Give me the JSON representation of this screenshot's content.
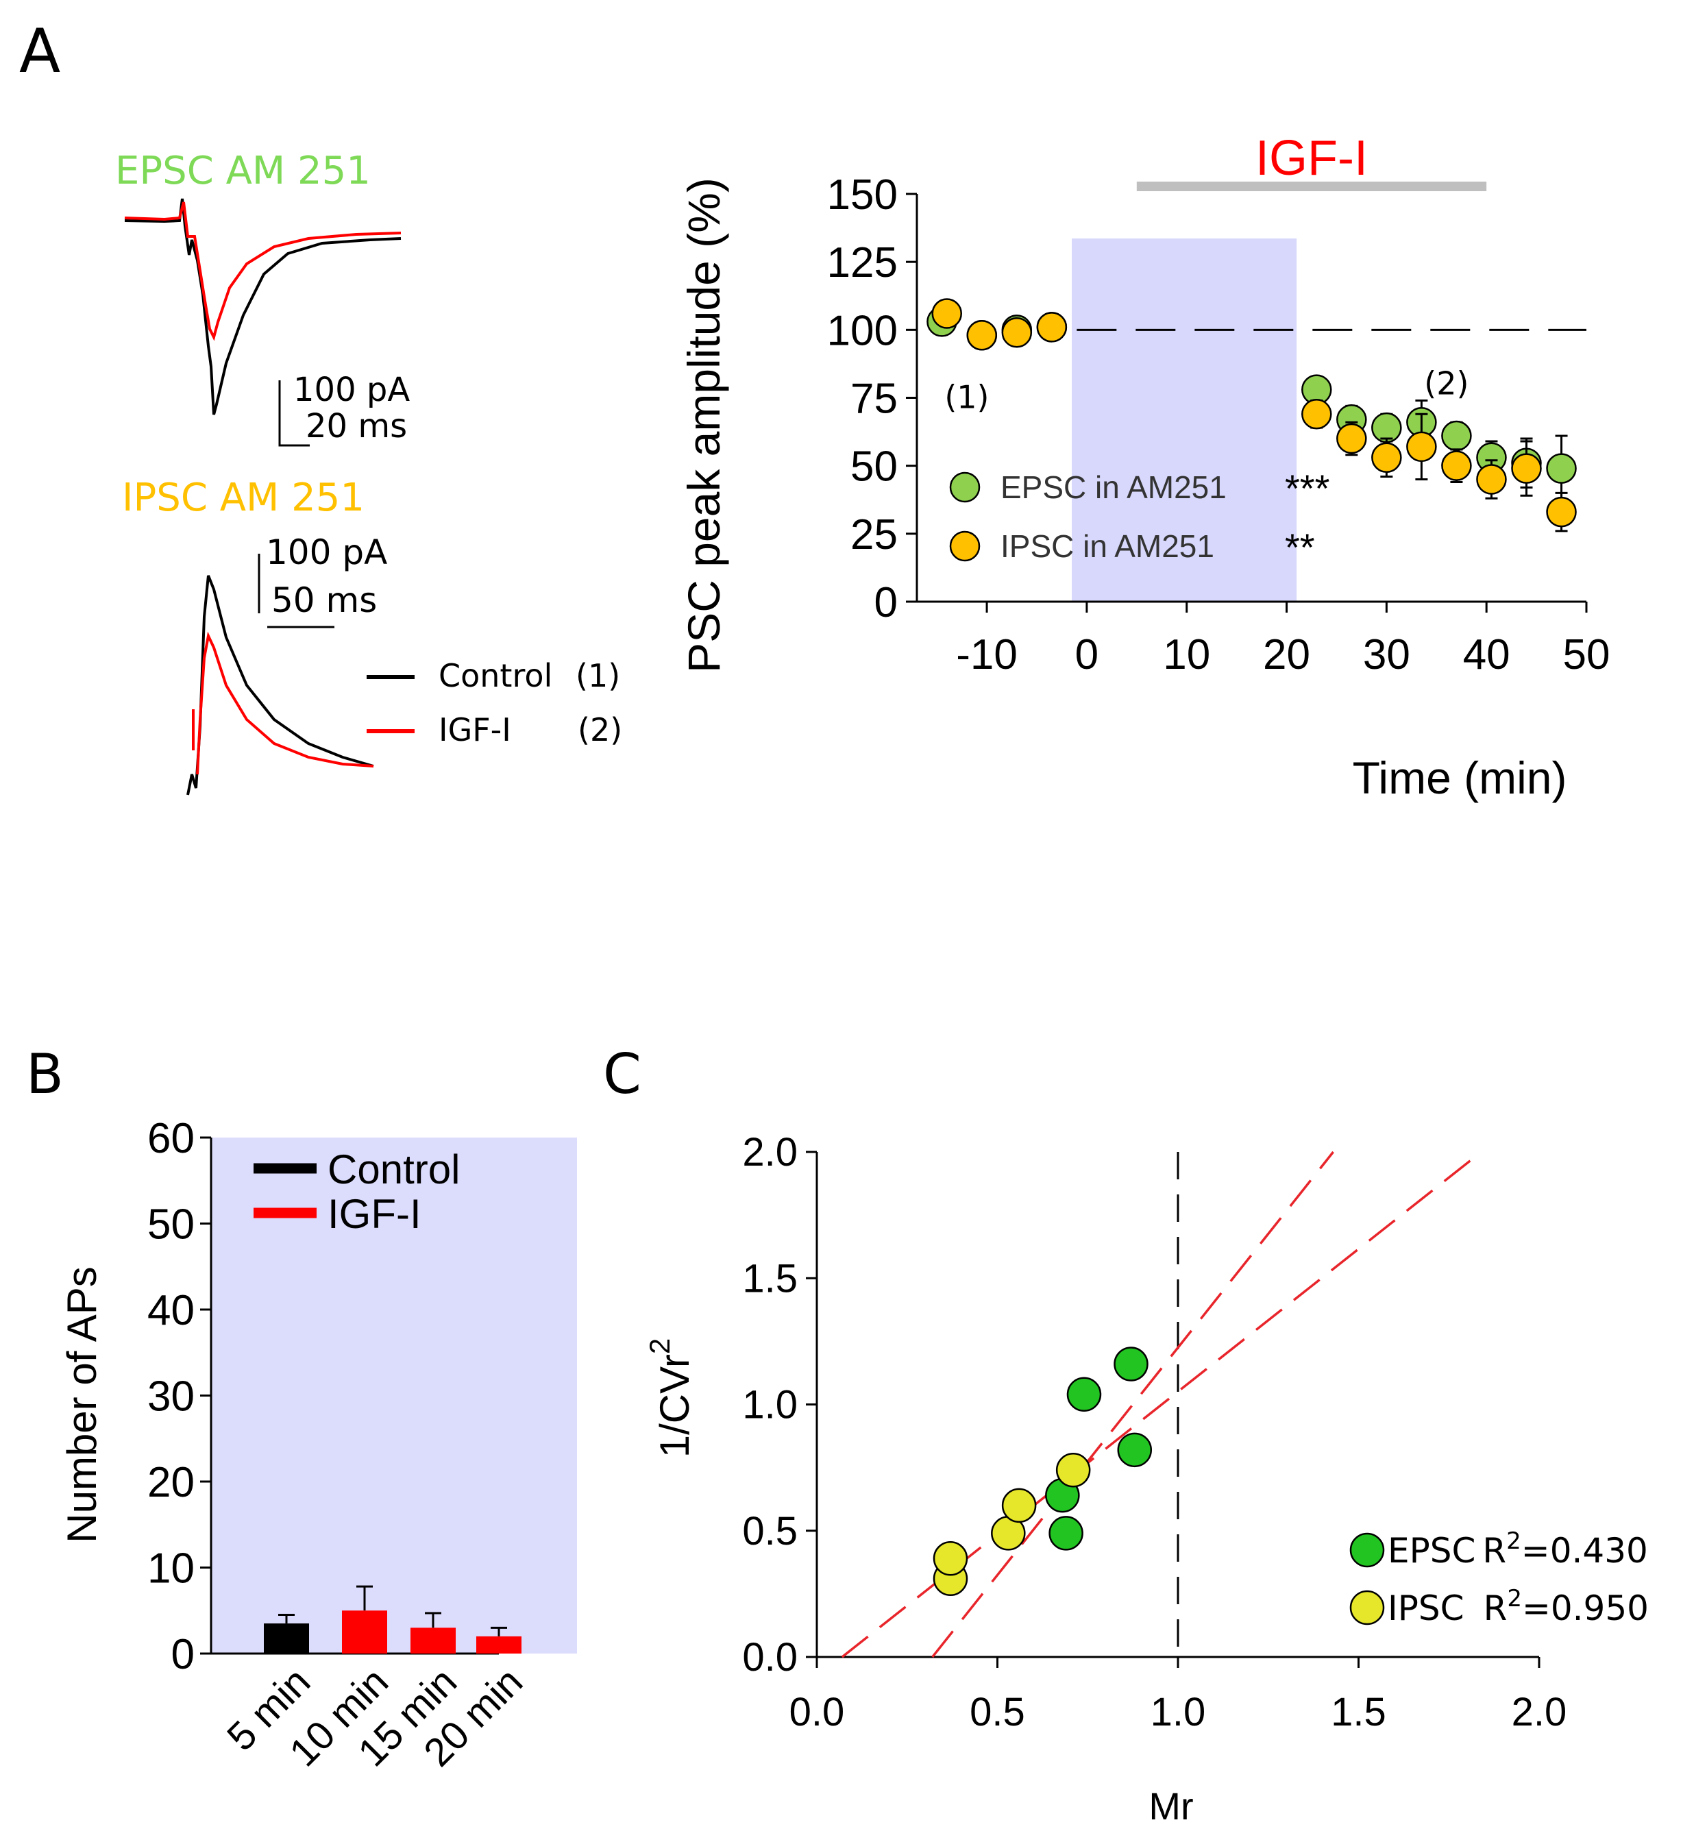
{
  "panels": {
    "A": {
      "label": "A"
    },
    "B": {
      "label": "B"
    },
    "C": {
      "label": "C"
    }
  },
  "traces": {
    "epsc_title": "EPSC AM 251",
    "ipsc_title": "IPSC AM 251",
    "epsc_scale_amp": "100 pA",
    "epsc_scale_time": "20 ms",
    "ipsc_scale_amp": "100 pA",
    "ipsc_scale_time": "50 ms",
    "legend_control": "Control",
    "legend_control_tag": "(1)",
    "legend_igf": "IGF-I",
    "legend_igf_tag": "(2)",
    "colors": {
      "control": "#000000",
      "igf": "#ff0000",
      "epsc_title": "#7ed957",
      "ipsc_title": "#ffc000"
    }
  },
  "chart_data": [
    {
      "id": "A_timecourse",
      "type": "scatter",
      "title": "",
      "xlabel": "Time (min)",
      "ylabel": "PSC peak amplitude (%)",
      "xlim": [
        -17,
        50
      ],
      "ylim": [
        0,
        150
      ],
      "xticks": [
        -10,
        0,
        10,
        20,
        30,
        40,
        50
      ],
      "yticks": [
        0,
        25,
        50,
        75,
        100,
        125,
        150
      ],
      "bar_label": "IGF-I",
      "bar_range": [
        5,
        40
      ],
      "shaded_range": [
        -1.5,
        21
      ],
      "reference_line": 100,
      "annotations": [
        "(1)",
        "(2)"
      ],
      "series": [
        {
          "name": "EPSC in AM251",
          "significance": "***",
          "color": "#8fd14f",
          "x": [
            -14.5,
            -10.5,
            -7,
            -3.5,
            23,
            26.5,
            30,
            33.5,
            37,
            40.5,
            44,
            47.5
          ],
          "y": [
            103,
            98,
            100,
            101,
            78,
            67,
            64,
            66,
            61,
            53,
            51,
            49
          ],
          "err": [
            2,
            2,
            2,
            2,
            4,
            5,
            5,
            8,
            5,
            6,
            9,
            12
          ]
        },
        {
          "name": "IPSC in AM251",
          "significance": "**",
          "color": "#ffc000",
          "x": [
            -14,
            -10.5,
            -7,
            -3.5,
            23,
            26.5,
            30,
            33.5,
            37,
            40.5,
            44,
            47.5
          ],
          "y": [
            106,
            98,
            99,
            101,
            69,
            60,
            53,
            57,
            50,
            45,
            49,
            33
          ],
          "err": [
            3,
            2,
            2,
            2,
            5,
            6,
            7,
            12,
            6,
            7,
            10,
            7
          ]
        }
      ]
    },
    {
      "id": "B_aps",
      "type": "bar",
      "title": "",
      "xlabel": "",
      "ylabel": "Number of APs",
      "ylim": [
        0,
        60
      ],
      "yticks": [
        0,
        10,
        20,
        30,
        40,
        50,
        60
      ],
      "categories": [
        "5 min",
        "10 min",
        "15 min",
        "20 min"
      ],
      "values": [
        3.5,
        5,
        3,
        2
      ],
      "err": [
        1,
        2.8,
        1.7,
        1
      ],
      "bar_colors": [
        "#000000",
        "#ff0000",
        "#ff0000",
        "#ff0000"
      ],
      "legend": [
        {
          "label": "Control",
          "color": "#000000"
        },
        {
          "label": "IGF-I",
          "color": "#ff0000"
        }
      ]
    },
    {
      "id": "C_cv",
      "type": "scatter",
      "title": "",
      "xlabel": "Mr",
      "ylabel": "1/CVr",
      "ylabel_sup": "2",
      "xlim": [
        0,
        2
      ],
      "ylim": [
        0,
        2
      ],
      "xticks": [
        0.0,
        0.5,
        1.0,
        1.5,
        2.0
      ],
      "yticks": [
        0.0,
        0.5,
        1.0,
        1.5,
        2.0
      ],
      "xtick_labels": [
        "0.0",
        "0.5",
        "1.0",
        "1.5",
        "2.0"
      ],
      "ytick_labels": [
        "0.0",
        "0.5",
        "1.0",
        "1.5",
        "2.0"
      ],
      "reference_x": 1.0,
      "series": [
        {
          "name": "EPSC",
          "r2_label": "R",
          "r2_sup": "2",
          "r2_value": "=0.430",
          "color": "#22c422",
          "x": [
            0.87,
            0.74,
            0.88,
            0.68,
            0.69
          ],
          "y": [
            1.16,
            1.04,
            0.82,
            0.64,
            0.49
          ],
          "fit": [
            [
              0.32,
              0.0
            ],
            [
              1.43,
              2.0
            ]
          ]
        },
        {
          "name": "IPSC",
          "r2_label": "R",
          "r2_sup": "2",
          "r2_value": "=0.950",
          "color": "#e6e62a",
          "x": [
            0.37,
            0.37,
            0.53,
            0.56,
            0.71
          ],
          "y": [
            0.31,
            0.39,
            0.49,
            0.6,
            0.74
          ],
          "fit": [
            [
              0.07,
              0.0
            ],
            [
              1.84,
              2.0
            ]
          ]
        }
      ]
    }
  ]
}
